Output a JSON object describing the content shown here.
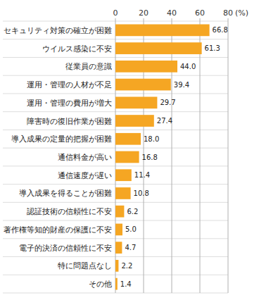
{
  "chart_data": {
    "type": "bar",
    "orientation": "horizontal",
    "categories": [
      "その他",
      "特に問題点なし",
      "電子的決済の信頼性に不安",
      "著作権等知的財産の保護に不安",
      "認証技術の信頼性に不安",
      "導入成果を得ることが困難",
      "通信速度が遅い",
      "通信料金が高い",
      "導入成果の定量的把握が困難",
      "障害時の復旧作業が困難",
      "運用・管理の費用が増大",
      "運用・管理の人材が不足",
      "従業員の意識",
      "ウイルス感染に不安",
      "セキュリティ対策の確立が困難"
    ],
    "values": [
      1.4,
      2.2,
      4.7,
      5.0,
      6.2,
      10.8,
      11.4,
      16.8,
      18.0,
      27.4,
      29.7,
      39.4,
      44.0,
      61.3,
      66.8
    ],
    "value_labels": [
      "1.4",
      "2.2",
      "4.7",
      "5.0",
      "6.2",
      "10.8",
      "11.4",
      "16.8",
      "18.0",
      "27.4",
      "29.7",
      "39.4",
      "44.0",
      "61.3",
      "66.8"
    ],
    "color": "#F5A623",
    "xlabel": "(%)",
    "xlim": [
      0,
      80
    ],
    "xticks": [
      0,
      20,
      40,
      60,
      80
    ],
    "grid": true,
    "data_labels": true
  }
}
